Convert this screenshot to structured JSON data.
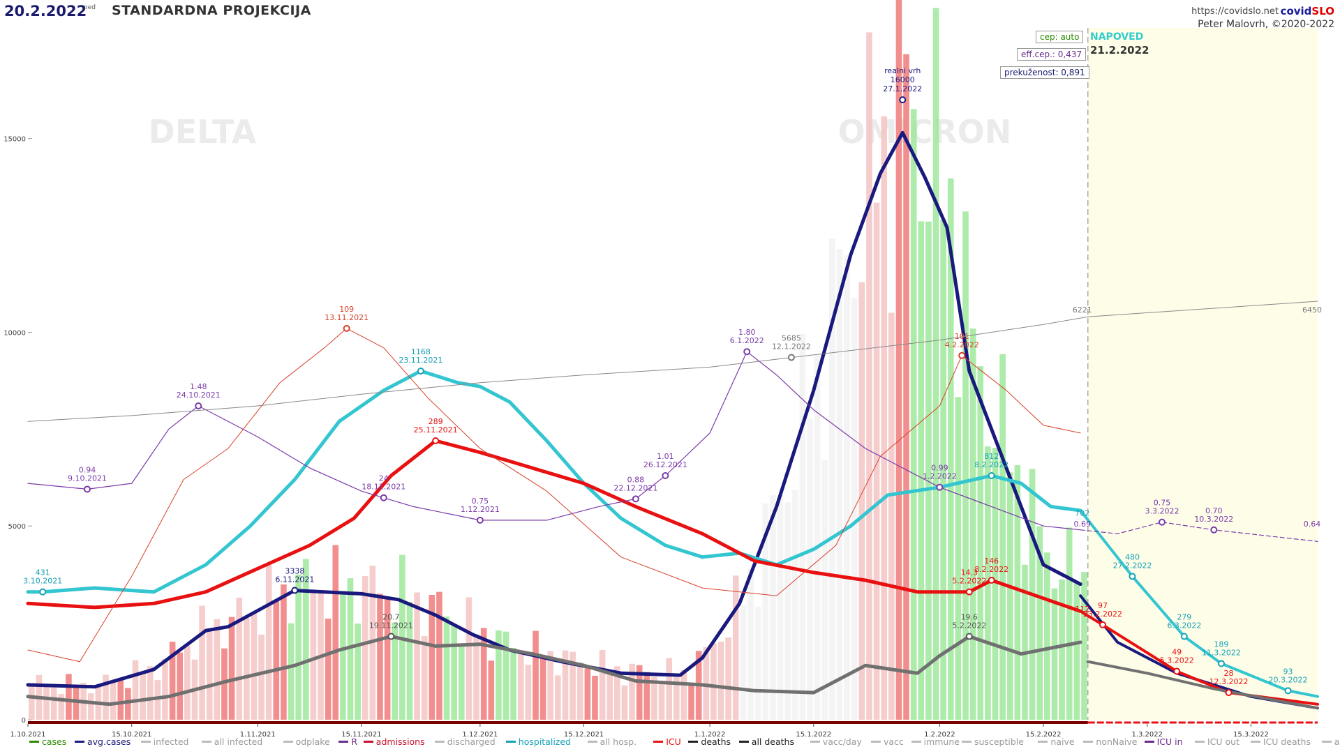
{
  "header": {
    "date": "20.2.2022",
    "day": "ned",
    "title": "STANDARDNA PROJEKCIJA",
    "url": "https://covidslo.net",
    "brand_a": "covid",
    "brand_b": "SLO",
    "author": "Peter Malovrh, ©2020-2022"
  },
  "boxes": {
    "cep": "cep: auto",
    "eff": "eff.cep.: 0,437",
    "prek": "prekuženost: 0,891"
  },
  "forecast": {
    "label": "NAPOVED",
    "date": "21.2.2022"
  },
  "watermarks": [
    "DELTA",
    "OMICRON"
  ],
  "colors": {
    "avg_cases": "#1a1a7e",
    "hospitalized": "#33c5d0",
    "icu": "#e81010",
    "deaths": "#707070",
    "r": "#7a3aaa",
    "admissions": "#d8402a",
    "immune": "#888888",
    "bars_cases": "#f07a7a",
    "bars_discharged": "#9de79a",
    "forecast_bg": "#fdfde8"
  },
  "chart_data": {
    "type": "line",
    "title": "STANDARDNA PROJEKCIJA",
    "x_range": [
      "1.10.2021",
      "24.3.2022"
    ],
    "y_range": [
      0,
      18000
    ],
    "y_ticks": [
      "0",
      "5000",
      "10000",
      "15000"
    ],
    "x_ticks": [
      "1.10.2021",
      "15.10.2021",
      "1.11.2021",
      "15.11.2021",
      "1.12.2021",
      "15.12.2021",
      "1.1.2022",
      "15.1.2022",
      "1.2.2022",
      "15.2.2022",
      "1.3.2022",
      "15.3.2022"
    ],
    "forecast_start": "21.2.2022",
    "series": [
      {
        "name": "avg.cases",
        "points": [
          [
            "1.10.2021",
            900
          ],
          [
            "10.10.2021",
            850
          ],
          [
            "18.10.2021",
            1300
          ],
          [
            "25.10.2021",
            2300
          ],
          [
            "28.10.2021",
            2400
          ],
          [
            "6.11.2021",
            3338
          ],
          [
            "15.11.2021",
            3250
          ],
          [
            "20.11.2021",
            3100
          ],
          [
            "25.11.2021",
            2700
          ],
          [
            "30.11.2021",
            2200
          ],
          [
            "5.12.2021",
            1800
          ],
          [
            "12.12.2021",
            1500
          ],
          [
            "20.12.2021",
            1200
          ],
          [
            "28.12.2021",
            1150
          ],
          [
            "31.12.2021",
            1600
          ],
          [
            "5.1.2022",
            3000
          ],
          [
            "10.1.2022",
            5500
          ],
          [
            "15.1.2022",
            8500
          ],
          [
            "20.1.2022",
            12000
          ],
          [
            "24.1.2022",
            14100
          ],
          [
            "27.1.2022",
            15150
          ],
          [
            "30.1.2022",
            14000
          ],
          [
            "2.2.2022",
            12700
          ],
          [
            "5.2.2022",
            9000
          ],
          [
            "10.2.2022",
            6500
          ],
          [
            "15.2.2022",
            4000
          ],
          [
            "20.2.2022",
            3500
          ]
        ]
      },
      {
        "name": "avg.cases forecast",
        "points": [
          [
            "20.2.2022",
            3200
          ],
          [
            "25.2.2022",
            2000
          ],
          [
            "5.3.2022",
            1200
          ],
          [
            "15.3.2022",
            600
          ],
          [
            "24.3.2022",
            300
          ]
        ]
      },
      {
        "name": "hospitalized",
        "points": [
          [
            "1.10.2021",
            3300
          ],
          [
            "3.10.2021",
            3300
          ],
          [
            "10.10.2021",
            3400
          ],
          [
            "18.10.2021",
            3300
          ],
          [
            "25.10.2021",
            4000
          ],
          [
            "31.10.2021",
            5000
          ],
          [
            "6.11.2021",
            6200
          ],
          [
            "12.11.2021",
            7700
          ],
          [
            "18.11.2021",
            8500
          ],
          [
            "23.11.2021",
            9000
          ],
          [
            "28.11.2021",
            8700
          ],
          [
            "1.12.2021",
            8600
          ],
          [
            "5.12.2021",
            8200
          ],
          [
            "10.12.2021",
            7200
          ],
          [
            "15.12.2021",
            6100
          ],
          [
            "20.12.2021",
            5200
          ],
          [
            "26.12.2021",
            4500
          ],
          [
            "31.12.2021",
            4200
          ],
          [
            "5.1.2022",
            4300
          ],
          [
            "10.1.2022",
            4000
          ],
          [
            "15.1.2022",
            4400
          ],
          [
            "20.1.2022",
            5000
          ],
          [
            "25.1.2022",
            5800
          ],
          [
            "1.2.2022",
            6000
          ],
          [
            "8.2.2022",
            6300
          ],
          [
            "12.2.2022",
            6100
          ],
          [
            "16.2.2022",
            5500
          ],
          [
            "20.2.2022",
            5400
          ]
        ]
      },
      {
        "name": "hospitalized forecast",
        "points": [
          [
            "20.2.2022",
            5400
          ],
          [
            "27.2.2022",
            3700
          ],
          [
            "6.3.2022",
            2150
          ],
          [
            "11.3.2022",
            1450
          ],
          [
            "20.3.2022",
            750
          ],
          [
            "24.3.2022",
            600
          ]
        ]
      },
      {
        "name": "ICU",
        "points": [
          [
            "1.10.2021",
            3000
          ],
          [
            "10.10.2021",
            2900
          ],
          [
            "18.10.2021",
            3000
          ],
          [
            "25.10.2021",
            3300
          ],
          [
            "1.11.2021",
            3900
          ],
          [
            "8.11.2021",
            4500
          ],
          [
            "14.11.2021",
            5200
          ],
          [
            "19.11.2021",
            6300
          ],
          [
            "25.11.2021",
            7200
          ],
          [
            "1.12.2021",
            6900
          ],
          [
            "8.12.2021",
            6500
          ],
          [
            "15.12.2021",
            6100
          ],
          [
            "22.12.2021",
            5500
          ],
          [
            "31.12.2021",
            4800
          ],
          [
            "7.1.2022",
            4100
          ],
          [
            "15.1.2022",
            3800
          ],
          [
            "22.1.2022",
            3600
          ],
          [
            "29.1.2022",
            3300
          ],
          [
            "5.2.2022",
            3300
          ],
          [
            "8.2.2022",
            3600
          ],
          [
            "14.2.2022",
            3200
          ],
          [
            "20.2.2022",
            2800
          ]
        ]
      },
      {
        "name": "ICU forecast",
        "points": [
          [
            "20.2.2022",
            2800
          ],
          [
            "23.2.2022",
            2450
          ],
          [
            "5.3.2022",
            1250
          ],
          [
            "12.3.2022",
            700
          ],
          [
            "24.3.2022",
            400
          ]
        ]
      },
      {
        "name": "deaths",
        "points": [
          [
            "1.10.2021",
            600
          ],
          [
            "12.10.2021",
            400
          ],
          [
            "20.10.2021",
            600
          ],
          [
            "28.10.2021",
            1000
          ],
          [
            "6.11.2021",
            1400
          ],
          [
            "12.11.2021",
            1800
          ],
          [
            "19.11.2021",
            2150
          ],
          [
            "25.11.2021",
            1900
          ],
          [
            "1.12.2021",
            1950
          ],
          [
            "8.12.2021",
            1700
          ],
          [
            "15.12.2021",
            1400
          ],
          [
            "22.12.2021",
            1000
          ],
          [
            "31.12.2021",
            900
          ],
          [
            "7.1.2022",
            750
          ],
          [
            "15.1.2022",
            700
          ],
          [
            "22.1.2022",
            1400
          ],
          [
            "29.1.2022",
            1200
          ],
          [
            "1.2.2022",
            1650
          ],
          [
            "5.2.2022",
            2150
          ],
          [
            "12.2.2022",
            1700
          ],
          [
            "20.2.2022",
            2000
          ]
        ]
      },
      {
        "name": "deaths forecast",
        "points": [
          [
            "21.2.2022",
            1500
          ],
          [
            "1.3.2022",
            1200
          ],
          [
            "10.3.2022",
            800
          ],
          [
            "24.3.2022",
            300
          ]
        ]
      },
      {
        "name": "R",
        "points": [
          [
            "1.10.2021",
            6100
          ],
          [
            "9.10.2021",
            5950
          ],
          [
            "15.10.2021",
            6100
          ],
          [
            "20.10.2021",
            7500
          ],
          [
            "24.10.2021",
            8100
          ],
          [
            "1.11.2021",
            7300
          ],
          [
            "8.11.2021",
            6500
          ],
          [
            "15.11.2021",
            5900
          ],
          [
            "22.11.2021",
            5500
          ],
          [
            "1.12.2021",
            5150
          ],
          [
            "10.12.2021",
            5150
          ],
          [
            "17.12.2021",
            5500
          ],
          [
            "22.12.2021",
            5700
          ],
          [
            "26.12.2021",
            6300
          ],
          [
            "1.1.2022",
            7400
          ],
          [
            "6.1.2022",
            9500
          ],
          [
            "10.1.2022",
            8900
          ],
          [
            "15.1.2022",
            8000
          ],
          [
            "22.1.2022",
            7000
          ],
          [
            "1.2.2022",
            6000
          ],
          [
            "8.2.2022",
            5500
          ],
          [
            "15.2.2022",
            5000
          ],
          [
            "20.2.2022",
            4900
          ]
        ]
      },
      {
        "name": "R forecast",
        "points": [
          [
            "20.2.2022",
            4900
          ],
          [
            "25.2.2022",
            4800
          ],
          [
            "3.3.2022",
            5100
          ],
          [
            "10.3.2022",
            4900
          ],
          [
            "24.3.2022",
            4600
          ]
        ]
      },
      {
        "name": "admissions",
        "points": [
          [
            "1.10.2021",
            1800
          ],
          [
            "8.10.2021",
            1500
          ],
          [
            "15.10.2021",
            3700
          ],
          [
            "22.10.2021",
            6200
          ],
          [
            "28.10.2021",
            7000
          ],
          [
            "4.11.2021",
            8700
          ],
          [
            "10.11.2021",
            9600
          ],
          [
            "13.11.2021",
            10100
          ],
          [
            "18.11.2021",
            9600
          ],
          [
            "24.11.2021",
            8300
          ],
          [
            "1.12.2021",
            7000
          ],
          [
            "10.12.2021",
            5900
          ],
          [
            "20.12.2021",
            4200
          ],
          [
            "31.12.2021",
            3400
          ],
          [
            "10.1.2022",
            3200
          ],
          [
            "18.1.2022",
            4500
          ],
          [
            "24.1.2022",
            6800
          ],
          [
            "1.2.2022",
            8100
          ],
          [
            "4.2.2022",
            9400
          ],
          [
            "10.2.2022",
            8500
          ],
          [
            "15.2.2022",
            7600
          ],
          [
            "20.2.2022",
            7400
          ]
        ]
      },
      {
        "name": "immune",
        "points": [
          [
            "1.10.2021",
            7700
          ],
          [
            "15.10.2021",
            7850
          ],
          [
            "1.11.2021",
            8100
          ],
          [
            "15.11.2021",
            8400
          ],
          [
            "1.12.2021",
            8700
          ],
          [
            "15.12.2021",
            8900
          ],
          [
            "1.1.2022",
            9100
          ],
          [
            "12.1.2022",
            9350
          ],
          [
            "1.2.2022",
            9800
          ],
          [
            "15.2.2022",
            10200
          ],
          [
            "21.2.2022",
            10400
          ],
          [
            "24.3.2022",
            10800
          ]
        ]
      }
    ],
    "annotations": [
      {
        "series": "hospitalized",
        "value": "431",
        "date": "3.10.2021"
      },
      {
        "series": "R",
        "value": "0.94",
        "date": "9.10.2021"
      },
      {
        "series": "R",
        "value": "1.48",
        "date": "24.10.2021"
      },
      {
        "series": "avg.cases",
        "value": "3338",
        "date": "6.11.2021"
      },
      {
        "series": "admissions",
        "value": "109",
        "date": "13.11.2021"
      },
      {
        "series": "R",
        "value": "24",
        "date": "18.11.2021"
      },
      {
        "series": "deaths",
        "value": "20.7",
        "date": "19.11.2021"
      },
      {
        "series": "hospitalized",
        "value": "1168",
        "date": "23.11.2021"
      },
      {
        "series": "ICU",
        "value": "289",
        "date": "25.11.2021"
      },
      {
        "series": "R",
        "value": "0.75",
        "date": "1.12.2021"
      },
      {
        "series": "R",
        "value": "0.88",
        "date": "22.12.2021"
      },
      {
        "series": "R",
        "value": "1.01",
        "date": "26.12.2021"
      },
      {
        "series": "R",
        "value": "1.80",
        "date": "6.1.2022"
      },
      {
        "series": "immune",
        "value": "5685",
        "date": "12.1.2022"
      },
      {
        "series": "avg.cases",
        "value": "realni vrh 16000",
        "date": "27.1.2022"
      },
      {
        "series": "R",
        "value": "0.99",
        "date": "1.2.2022"
      },
      {
        "series": "admissions",
        "value": "101",
        "date": "4.2.2022"
      },
      {
        "series": "ICU",
        "value": "14.3",
        "date": "5.2.2022"
      },
      {
        "series": "deaths",
        "value": "19.6",
        "date": "5.2.2022"
      },
      {
        "series": "hospitalized",
        "value": "812",
        "date": "8.2.2022"
      },
      {
        "series": "ICU",
        "value": "146",
        "date": "8.2.2022"
      },
      {
        "series": "hospitalized",
        "value": "702",
        "date": ""
      },
      {
        "series": "R",
        "value": "0.69",
        "date": ""
      },
      {
        "series": "ICU",
        "value": "112",
        "date": ""
      },
      {
        "series": "immune",
        "value": "6221",
        "date": ""
      },
      {
        "series": "ICU",
        "value": "97",
        "date": "23.2.2022"
      },
      {
        "series": "hospitalized",
        "value": "480",
        "date": "27.2.2022"
      },
      {
        "series": "R",
        "value": "0.75",
        "date": "3.3.2022"
      },
      {
        "series": "ICU",
        "value": "49",
        "date": "5.3.2022"
      },
      {
        "series": "hospitalized",
        "value": "279",
        "date": "6.3.2022"
      },
      {
        "series": "R",
        "value": "0.70",
        "date": "10.3.2022"
      },
      {
        "series": "hospitalized",
        "value": "189",
        "date": "11.3.2022"
      },
      {
        "series": "ICU",
        "value": "28",
        "date": "12.3.2022"
      },
      {
        "series": "hospitalized",
        "value": "93",
        "date": "20.3.2022"
      },
      {
        "series": "immune",
        "value": "6450",
        "date": ""
      },
      {
        "series": "R",
        "value": "0.64",
        "date": ""
      }
    ]
  },
  "legend": [
    {
      "label": "cases",
      "color": "#2a8a00"
    },
    {
      "label": "avg.cases",
      "color": "#1a1a7e"
    },
    {
      "label": "infected",
      "color": "#bbbbbb"
    },
    {
      "label": "all infected",
      "color": "#bbbbbb"
    },
    {
      "label": "odplake",
      "color": "#bbbbbb"
    },
    {
      "label": "R",
      "color": "#6a2b8a"
    },
    {
      "label": "admissions",
      "color": "#c8102e"
    },
    {
      "label": "discharged",
      "color": "#bbbbbb"
    },
    {
      "label": "hospitalized",
      "color": "#17a2b8"
    },
    {
      "label": "all hosp.",
      "color": "#bbbbbb"
    },
    {
      "label": "ICU",
      "color": "#e81010"
    },
    {
      "label": "deaths",
      "color": "#222222"
    },
    {
      "label": "all deaths",
      "color": "#222222"
    },
    {
      "label": "vacc/day",
      "color": "#bbbbbb"
    },
    {
      "label": "vacc",
      "color": "#bbbbbb"
    },
    {
      "label": "immune",
      "color": "#bbbbbb"
    },
    {
      "label": "susceptible",
      "color": "#bbbbbb"
    },
    {
      "label": "naive",
      "color": "#bbbbbb"
    },
    {
      "label": "nonNaive",
      "color": "#bbbbbb"
    },
    {
      "label": "ICU in",
      "color": "#6a2b8a"
    },
    {
      "label": "ICU out",
      "color": "#bbbbbb"
    },
    {
      "label": "ICU deaths",
      "color": "#bbbbbb"
    },
    {
      "label": "all ICU",
      "color": "#bbbbbb"
    }
  ]
}
